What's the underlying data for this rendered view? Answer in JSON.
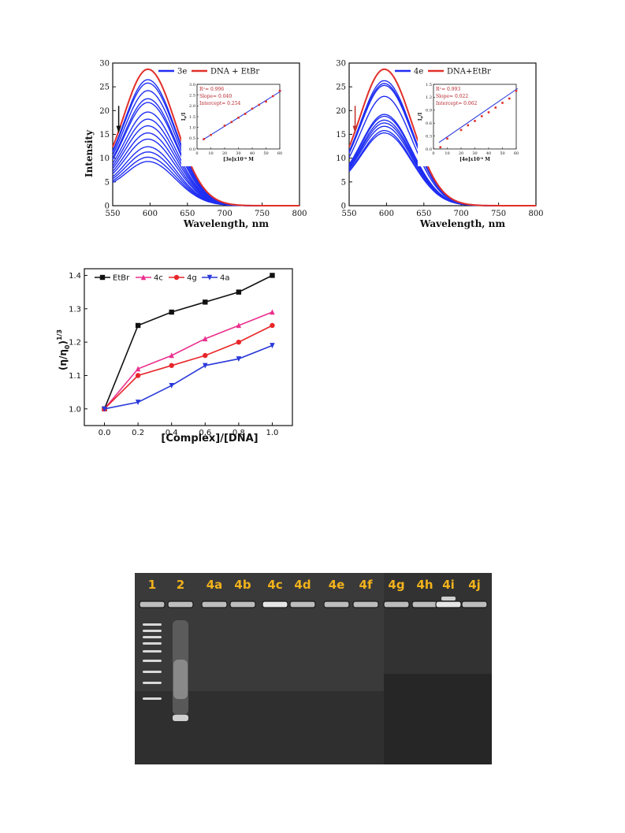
{
  "chart_data": [
    {
      "type": "line",
      "xlabel": "Wavelength, nm",
      "ylabel": "Intensity",
      "xlim": [
        550,
        800
      ],
      "ylim": [
        0,
        30
      ],
      "xticks": [
        "550",
        "600",
        "650",
        "700",
        "750",
        "800"
      ],
      "yticks": [
        "0",
        "5",
        "10",
        "15",
        "20",
        "25",
        "30"
      ],
      "legend": [
        "3e",
        "DNA + EtBr"
      ],
      "legend_position": "top",
      "colors": {
        "titration": "#1f2ef2",
        "reference": "#e0302a"
      },
      "peak_wavelength": 597,
      "curve_peaks": [
        28.7,
        26.5,
        25.8,
        24.2,
        22.5,
        21.7,
        19.7,
        18.2,
        16.8,
        15.3,
        14.0,
        12.4,
        11.3,
        10.2,
        9.3
      ],
      "inset": {
        "type": "scatter",
        "xlabel": "[3e]x10",
        "xlabel_sup": "-6",
        "xlabel_unit": " M",
        "ylabel": "I",
        "ylabel_sub": "0",
        "ylabel_tail": "/I",
        "xlim": [
          0,
          60
        ],
        "ylim": [
          0,
          3.0
        ],
        "xticks": [
          "0",
          "10",
          "20",
          "30",
          "40",
          "50",
          "60"
        ],
        "yticks": [
          "0.0",
          "0.5",
          "1.0",
          "1.5",
          "2.0",
          "2.5",
          "3.0"
        ],
        "x": [
          5,
          10,
          20,
          25,
          30,
          35,
          40,
          45,
          50,
          55,
          60
        ],
        "y": [
          0.46,
          0.65,
          1.08,
          1.25,
          1.45,
          1.63,
          1.87,
          2.05,
          2.2,
          2.45,
          2.7
        ],
        "fit": {
          "slope": 0.04,
          "intercept": 0.254
        },
        "stats": {
          "r2_label": "R",
          "r2_sup": "2",
          "r2_value": "= 0.996",
          "slope": "Slope= 0.040",
          "intercept": "Intercept= 0.254"
        }
      }
    },
    {
      "type": "line",
      "xlabel": "Wavelength, nm",
      "ylabel": "",
      "xlim": [
        550,
        800
      ],
      "ylim": [
        0,
        30
      ],
      "xticks": [
        "550",
        "600",
        "650",
        "700",
        "750",
        "800"
      ],
      "yticks": [
        "0",
        "5",
        "10",
        "15",
        "20",
        "25",
        "30"
      ],
      "legend": [
        "4e",
        "DNA+EtBr"
      ],
      "legend_position": "top",
      "colors": {
        "titration": "#1f2ef2",
        "reference": "#e0302a"
      },
      "peak_wavelength": 597,
      "curve_peaks": [
        28.7,
        26.3,
        25.7,
        25.3,
        23.0,
        19.2,
        18.8,
        18.0,
        17.4,
        16.7,
        15.8,
        15.3
      ],
      "inset": {
        "type": "scatter",
        "xlabel": "[4e]x10",
        "xlabel_sup": "-6",
        "xlabel_unit": " M",
        "ylabel": "I",
        "ylabel_sub": "0",
        "ylabel_tail": "/I",
        "xlim": [
          0,
          60
        ],
        "ylim": [
          0,
          1.5
        ],
        "xticks": [
          "0",
          "10",
          "20",
          "30",
          "40",
          "50",
          "60"
        ],
        "yticks": [
          "0.0",
          "0.3",
          "0.6",
          "0.9",
          "1.2",
          "1.5"
        ],
        "x": [
          5,
          10,
          20,
          25,
          30,
          35,
          40,
          45,
          50,
          55,
          60
        ],
        "y": [
          0.04,
          0.24,
          0.44,
          0.55,
          0.65,
          0.76,
          0.85,
          0.96,
          1.07,
          1.17,
          1.35
        ],
        "fit": {
          "slope": 0.022,
          "intercept": 0.062
        },
        "stats": {
          "r2_label": "R",
          "r2_sup": "2",
          "r2_value": "= 0.993",
          "slope": "Slope= 0.022",
          "intercept": "Intercept= 0.062"
        }
      }
    },
    {
      "type": "line",
      "xlabel": "[Complex]/[DNA]",
      "ylabel": "(η/η",
      "ylabel_sub": "0",
      "ylabel_tail": ")",
      "ylabel_sup": "1/3",
      "xlim": [
        -0.12,
        1.12
      ],
      "ylim": [
        0.95,
        1.42
      ],
      "xticks": [
        "0.0",
        "0.2",
        "0.4",
        "0.6",
        "0.8",
        "1.0"
      ],
      "yticks": [
        "1.0",
        "1.1",
        "1.2",
        "1.3",
        "1.4"
      ],
      "x": [
        0.0,
        0.2,
        0.4,
        0.6,
        0.8,
        1.0
      ],
      "legend_position": "top",
      "series": [
        {
          "name": "EtBr",
          "values": [
            1.0,
            1.25,
            1.29,
            1.32,
            1.35,
            1.4
          ],
          "color": "#111111",
          "marker": "square"
        },
        {
          "name": "4c",
          "values": [
            1.0,
            1.12,
            1.16,
            1.21,
            1.25,
            1.29
          ],
          "color": "#ea2f8e",
          "marker": "triangle-up"
        },
        {
          "name": "4g",
          "values": [
            1.0,
            1.1,
            1.13,
            1.16,
            1.2,
            1.25
          ],
          "color": "#e8262a",
          "marker": "circle"
        },
        {
          "name": "4a",
          "values": [
            1.0,
            1.02,
            1.07,
            1.13,
            1.15,
            1.19
          ],
          "color": "#2a39d9",
          "marker": "triangle-down"
        }
      ]
    }
  ],
  "gel": {
    "lanes": [
      "1",
      "2",
      "4a",
      "4b",
      "4c",
      "4d",
      "4e",
      "4f",
      "4g",
      "4h",
      "4i",
      "4j"
    ],
    "label_color": "#f2b21c"
  }
}
